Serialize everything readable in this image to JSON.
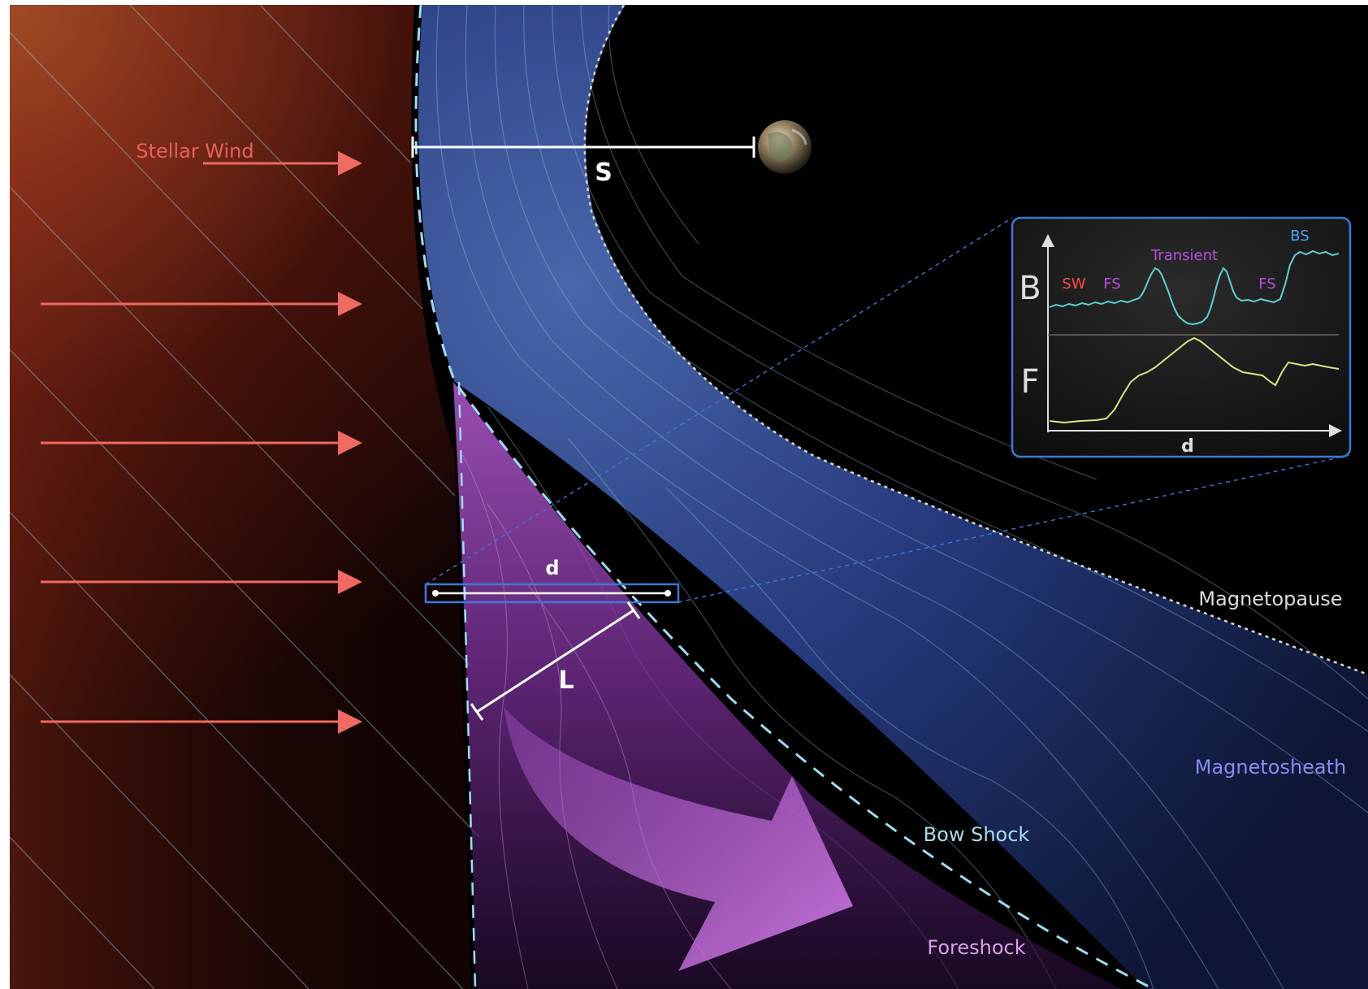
{
  "labels": {
    "stellar_wind": "Stellar Wind",
    "standoff": "S",
    "sample_length": "d",
    "transient_length": "L",
    "magnetopause": "Magnetopause",
    "magnetosheath": "Magnetosheath",
    "bow_shock": "Bow Shock",
    "foreshock": "Foreshock"
  },
  "inset": {
    "y_top_label": "B",
    "y_bottom_label": "F",
    "x_label": "d",
    "regions": {
      "sw": "SW",
      "fs_left": "FS",
      "transient": "Transient",
      "fs_right": "FS",
      "bs": "BS"
    }
  },
  "colors": {
    "stellar_wind": "#e8605a",
    "arrows": "#ee6a62",
    "magnetosheath": "#8a8cf2",
    "bow_shock": "#a9dcef",
    "foreshock": "#d9a0e6",
    "magnetopause": "#dcdcdc",
    "inset_border": "#3d78d8",
    "b_trace": "#5fd0cf",
    "f_trace": "#d6e58a",
    "sw_label": "#ff4a4a",
    "fs_label": "#b84ee0",
    "transient_label": "#b84ee0",
    "bs_label": "#4a9cff",
    "transient_arrow": "#c06dd6"
  },
  "icons": {
    "planet": "earth-like-planet-icon"
  }
}
